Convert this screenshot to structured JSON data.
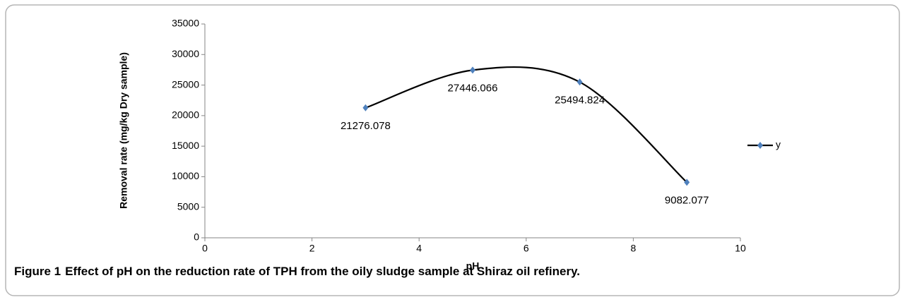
{
  "chart_data": {
    "type": "line",
    "caption": {
      "label": "Figure 1",
      "text": "Effect of pH on the reduction rate of TPH from the oily sludge sample at Shiraz oil refinery."
    },
    "x_label": "pH",
    "y_label": "Removal rate (mg/kg Dry sample)",
    "x": [
      3,
      5,
      7,
      9
    ],
    "series": [
      {
        "name": "y",
        "color": "#4f81bd",
        "line_color": "#000000",
        "values": [
          21276.078,
          27446.066,
          25494.824,
          9082.077
        ]
      }
    ],
    "xlim": [
      0,
      10
    ],
    "xticks": [
      0,
      2,
      4,
      6,
      8,
      10
    ],
    "ylim": [
      0,
      35000
    ],
    "yticks": [
      0,
      5000,
      10000,
      15000,
      20000,
      25000,
      30000,
      35000
    ],
    "grid": false,
    "legend": "right",
    "smooth": true
  }
}
